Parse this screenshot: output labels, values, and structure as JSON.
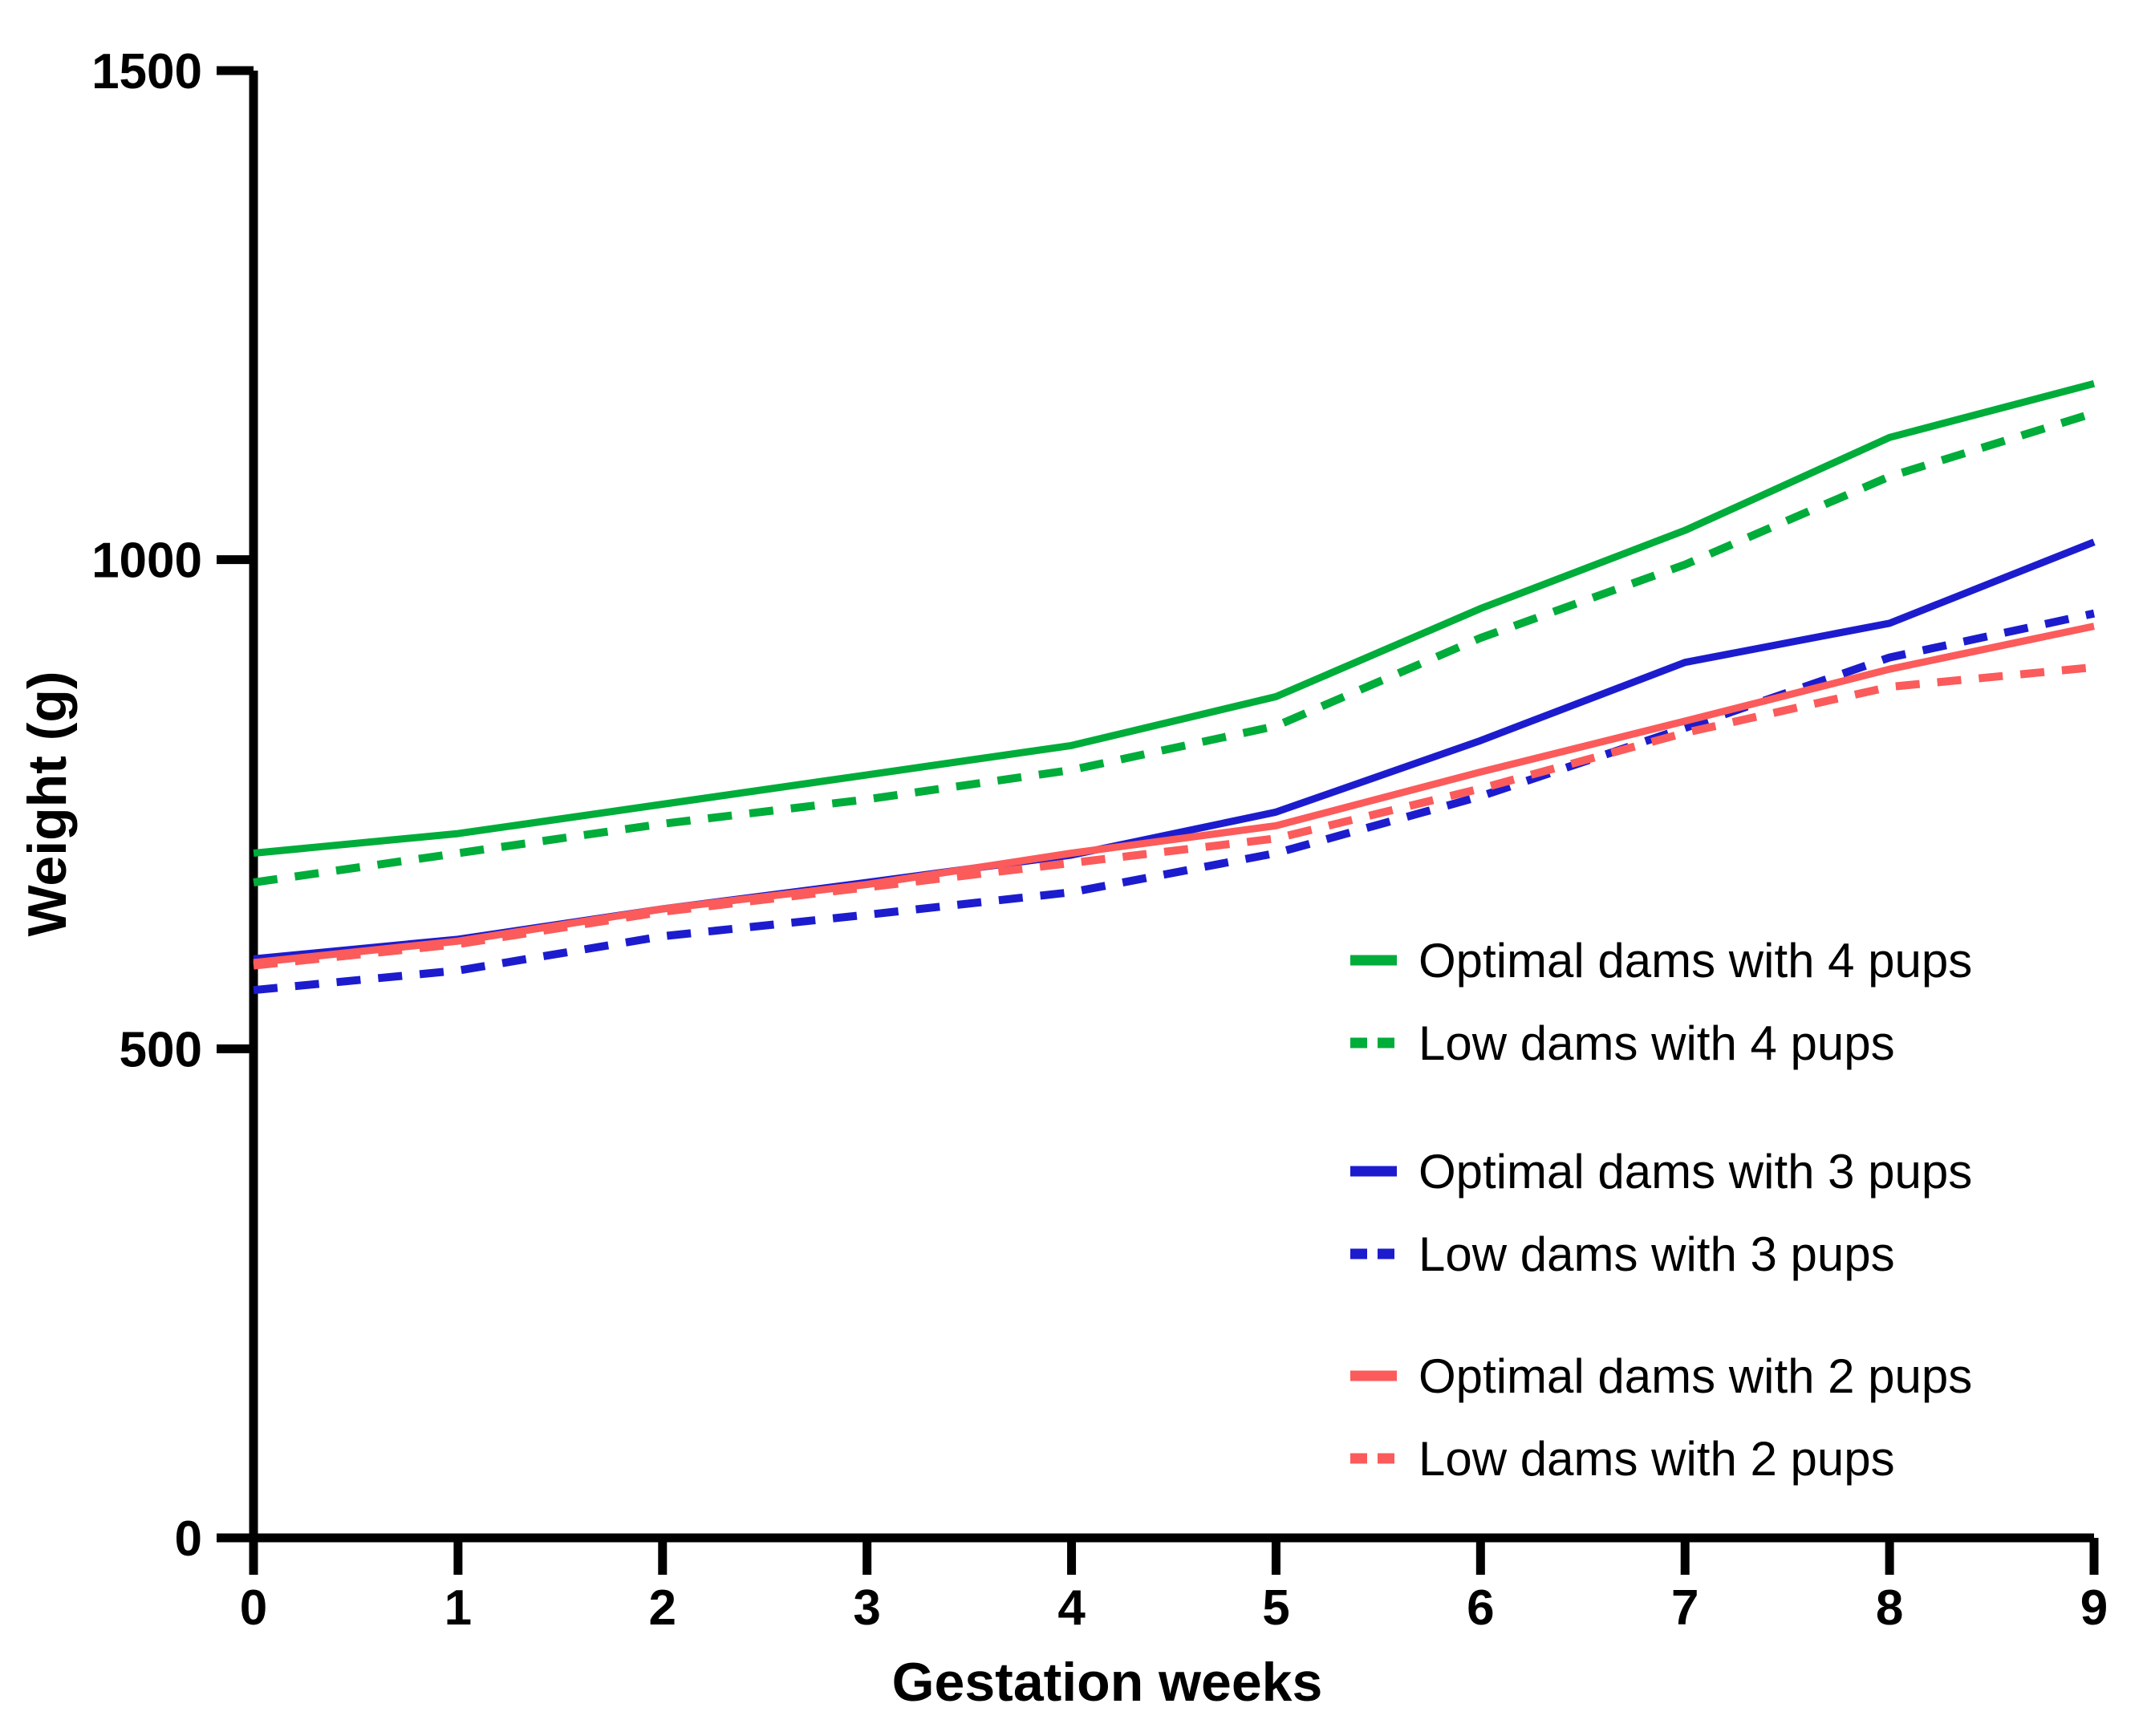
{
  "chart_data": {
    "type": "line",
    "title": "",
    "xlabel": "Gestation weeks",
    "ylabel": "Weight (g)",
    "x": [
      0,
      1,
      2,
      3,
      4,
      5,
      6,
      7,
      8,
      9
    ],
    "xlim": [
      0,
      9
    ],
    "ylim": [
      0,
      1500
    ],
    "x_ticks": [
      "0",
      "1",
      "2",
      "3",
      "4",
      "5",
      "6",
      "7",
      "8",
      "9"
    ],
    "y_ticks": [
      "0",
      "500",
      "1000",
      "1500"
    ],
    "y_tick_values": [
      0,
      500,
      1000,
      1500
    ],
    "grid": false,
    "legend_position": "inside-right",
    "axis_color": "#000000",
    "series": [
      {
        "name": "Optimal dams with 4 pups",
        "color": "#00AC3A",
        "style": "solid",
        "values": [
          700,
          720,
          750,
          780,
          810,
          860,
          950,
          1030,
          1125,
          1180
        ]
      },
      {
        "name": "Low dams with 4 pups",
        "color": "#00AC3A",
        "style": "dashed",
        "values": [
          670,
          700,
          730,
          755,
          785,
          830,
          920,
          995,
          1085,
          1150
        ]
      },
      {
        "name": "Optimal dams with 3 pups",
        "color": "#1C1CCE",
        "style": "solid",
        "values": [
          592,
          612,
          643,
          670,
          698,
          742,
          815,
          895,
          935,
          1018
        ]
      },
      {
        "name": "Low dams with 3 pups",
        "color": "#1C1CCE",
        "style": "dashed",
        "values": [
          560,
          580,
          615,
          637,
          660,
          700,
          758,
          828,
          900,
          945
        ]
      },
      {
        "name": "Optimal dams with 2 pups",
        "color": "#FB5B5B",
        "style": "solid",
        "values": [
          588,
          610,
          643,
          668,
          700,
          728,
          783,
          835,
          888,
          932
        ]
      },
      {
        "name": "Low dams with 2 pups",
        "color": "#FB5B5B",
        "style": "dashed",
        "values": [
          585,
          607,
          640,
          665,
          690,
          715,
          766,
          823,
          870,
          890
        ]
      }
    ]
  }
}
